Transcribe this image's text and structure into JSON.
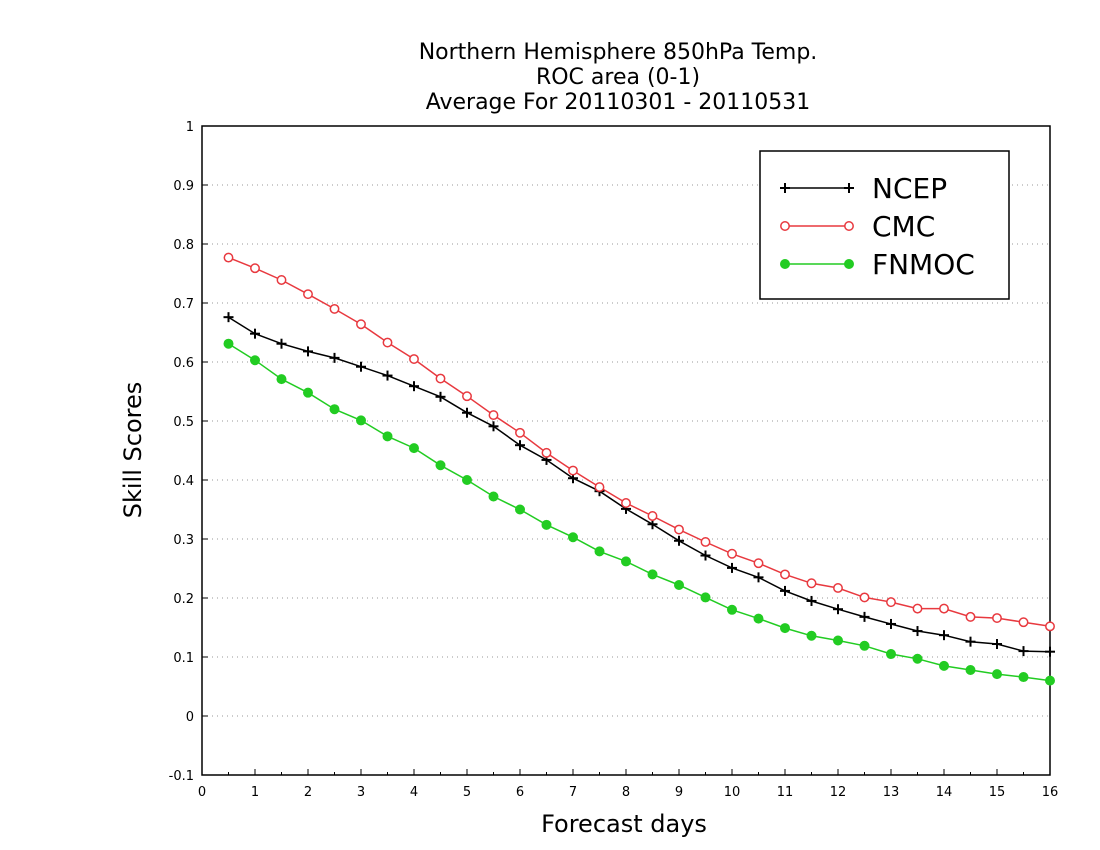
{
  "chart_data": {
    "type": "line",
    "title_lines": [
      "Northern Hemisphere 850hPa Temp.",
      "ROC area (0-1)",
      "Average For 20110301 - 20110531"
    ],
    "xlabel": "Forecast days",
    "ylabel": "Skill Scores",
    "xlim": [
      0,
      16
    ],
    "ylim": [
      -0.1,
      1
    ],
    "x_ticks": [
      "0",
      "1",
      "2",
      "3",
      "4",
      "5",
      "6",
      "7",
      "8",
      "9",
      "10",
      "11",
      "12",
      "13",
      "14",
      "15",
      "16"
    ],
    "y_ticks": [
      "-0.1",
      "0",
      "0.1",
      "0.2",
      "0.3",
      "0.4",
      "0.5",
      "0.6",
      "0.7",
      "0.8",
      "0.9",
      "1"
    ],
    "grid": "dotted horizontal",
    "legend_position": "top-right",
    "x": [
      0.5,
      1,
      1.5,
      2,
      2.5,
      3,
      3.5,
      4,
      4.5,
      5,
      5.5,
      6,
      6.5,
      7,
      7.5,
      8,
      8.5,
      9,
      9.5,
      10,
      10.5,
      11,
      11.5,
      12,
      12.5,
      13,
      13.5,
      14,
      14.5,
      15,
      15.5,
      16
    ],
    "series": [
      {
        "name": "NCEP",
        "color": "#000000",
        "marker": "plus",
        "values": [
          0.676,
          0.648,
          0.631,
          0.618,
          0.607,
          0.592,
          0.577,
          0.559,
          0.541,
          0.514,
          0.491,
          0.459,
          0.434,
          0.403,
          0.381,
          0.351,
          0.325,
          0.297,
          0.272,
          0.251,
          0.235,
          0.212,
          0.195,
          0.181,
          0.168,
          0.156,
          0.144,
          0.137,
          0.126,
          0.122,
          0.11,
          0.109
        ]
      },
      {
        "name": "CMC",
        "color": "#e8393f",
        "marker": "open-circle",
        "values": [
          0.777,
          0.759,
          0.739,
          0.715,
          0.69,
          0.664,
          0.633,
          0.605,
          0.572,
          0.542,
          0.51,
          0.48,
          0.446,
          0.416,
          0.388,
          0.361,
          0.339,
          0.316,
          0.295,
          0.275,
          0.259,
          0.24,
          0.225,
          0.217,
          0.201,
          0.193,
          0.182,
          0.182,
          0.168,
          0.166,
          0.159,
          0.152
        ]
      },
      {
        "name": "FNMOC",
        "color": "#22cc22",
        "marker": "filled-circle",
        "values": [
          0.631,
          0.603,
          0.571,
          0.548,
          0.52,
          0.501,
          0.474,
          0.454,
          0.425,
          0.4,
          0.372,
          0.35,
          0.324,
          0.303,
          0.279,
          0.262,
          0.24,
          0.222,
          0.201,
          0.18,
          0.165,
          0.149,
          0.136,
          0.128,
          0.119,
          0.105,
          0.097,
          0.085,
          0.078,
          0.071,
          0.066,
          0.06
        ]
      }
    ]
  }
}
